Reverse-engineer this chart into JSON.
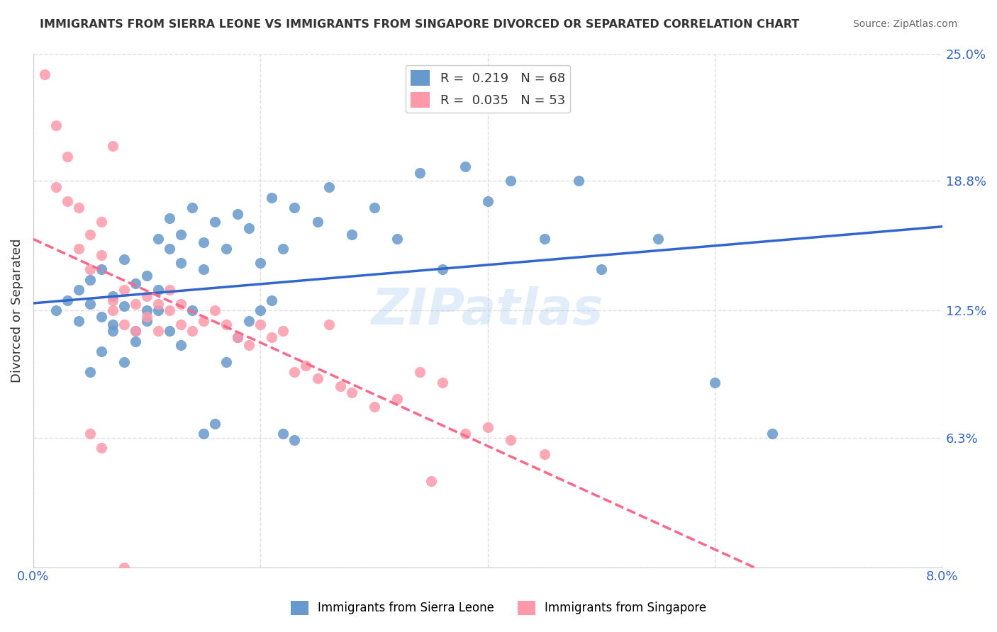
{
  "title": "IMMIGRANTS FROM SIERRA LEONE VS IMMIGRANTS FROM SINGAPORE DIVORCED OR SEPARATED CORRELATION CHART",
  "source": "Source: ZipAtlas.com",
  "xlabel": "",
  "ylabel": "Divorced or Separated",
  "legend_label_1": "Immigrants from Sierra Leone",
  "legend_label_2": "Immigrants from Singapore",
  "R1": 0.219,
  "N1": 68,
  "R2": 0.035,
  "N2": 53,
  "color1": "#6699CC",
  "color2": "#FF99AA",
  "line1_color": "#3366CC",
  "line2_color": "#FF6688",
  "xmin": 0.0,
  "xmax": 0.08,
  "ymin": 0.0,
  "ymax": 0.25,
  "yticks": [
    0.0,
    0.063,
    0.125,
    0.188,
    0.25
  ],
  "ytick_labels": [
    "",
    "6.3%",
    "12.5%",
    "18.8%",
    "25.0%"
  ],
  "xticks": [
    0.0,
    0.02,
    0.04,
    0.06,
    0.08
  ],
  "xtick_labels": [
    "0.0%",
    "",
    "",
    "",
    "8.0%"
  ],
  "sierra_leone_x": [
    0.002,
    0.003,
    0.004,
    0.004,
    0.005,
    0.005,
    0.006,
    0.006,
    0.007,
    0.007,
    0.008,
    0.008,
    0.009,
    0.009,
    0.01,
    0.01,
    0.011,
    0.011,
    0.012,
    0.012,
    0.013,
    0.013,
    0.014,
    0.015,
    0.015,
    0.016,
    0.017,
    0.018,
    0.019,
    0.02,
    0.021,
    0.022,
    0.023,
    0.025,
    0.026,
    0.028,
    0.03,
    0.032,
    0.034,
    0.036,
    0.038,
    0.04,
    0.042,
    0.045,
    0.048,
    0.05,
    0.055,
    0.06,
    0.065,
    0.005,
    0.006,
    0.007,
    0.008,
    0.009,
    0.01,
    0.011,
    0.012,
    0.013,
    0.014,
    0.015,
    0.016,
    0.017,
    0.018,
    0.019,
    0.02,
    0.021,
    0.022,
    0.023
  ],
  "sierra_leone_y": [
    0.125,
    0.13,
    0.12,
    0.135,
    0.14,
    0.128,
    0.145,
    0.122,
    0.132,
    0.118,
    0.127,
    0.15,
    0.138,
    0.115,
    0.142,
    0.125,
    0.16,
    0.135,
    0.155,
    0.17,
    0.148,
    0.162,
    0.175,
    0.158,
    0.145,
    0.168,
    0.155,
    0.172,
    0.165,
    0.148,
    0.18,
    0.155,
    0.175,
    0.168,
    0.185,
    0.162,
    0.175,
    0.16,
    0.192,
    0.145,
    0.195,
    0.178,
    0.188,
    0.16,
    0.188,
    0.145,
    0.16,
    0.09,
    0.065,
    0.095,
    0.105,
    0.115,
    0.1,
    0.11,
    0.12,
    0.125,
    0.115,
    0.108,
    0.125,
    0.065,
    0.07,
    0.1,
    0.112,
    0.12,
    0.125,
    0.13,
    0.065,
    0.062
  ],
  "singapore_x": [
    0.001,
    0.002,
    0.002,
    0.003,
    0.003,
    0.004,
    0.004,
    0.005,
    0.005,
    0.006,
    0.006,
    0.007,
    0.007,
    0.008,
    0.008,
    0.009,
    0.009,
    0.01,
    0.01,
    0.011,
    0.011,
    0.012,
    0.012,
    0.013,
    0.013,
    0.014,
    0.015,
    0.016,
    0.017,
    0.018,
    0.019,
    0.02,
    0.021,
    0.022,
    0.023,
    0.024,
    0.025,
    0.026,
    0.027,
    0.028,
    0.03,
    0.032,
    0.034,
    0.036,
    0.038,
    0.04,
    0.042,
    0.045,
    0.035,
    0.005,
    0.006,
    0.007,
    0.008
  ],
  "singapore_y": [
    0.24,
    0.215,
    0.185,
    0.2,
    0.178,
    0.175,
    0.155,
    0.162,
    0.145,
    0.168,
    0.152,
    0.125,
    0.13,
    0.135,
    0.118,
    0.128,
    0.115,
    0.132,
    0.122,
    0.128,
    0.115,
    0.135,
    0.125,
    0.128,
    0.118,
    0.115,
    0.12,
    0.125,
    0.118,
    0.112,
    0.108,
    0.118,
    0.112,
    0.115,
    0.095,
    0.098,
    0.092,
    0.118,
    0.088,
    0.085,
    0.078,
    0.082,
    0.095,
    0.09,
    0.065,
    0.068,
    0.062,
    0.055,
    0.042,
    0.065,
    0.058,
    0.205,
    0.0
  ],
  "watermark": "ZIPatlas",
  "background_color": "#ffffff",
  "grid_color": "#dddddd"
}
